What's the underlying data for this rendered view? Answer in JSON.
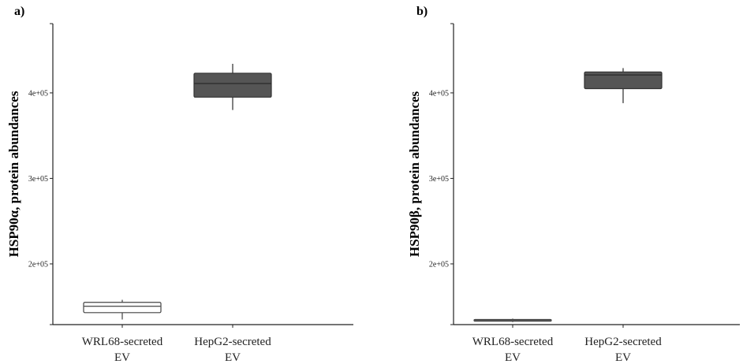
{
  "chart_data": [
    {
      "type": "box",
      "panel_label": "a)",
      "ylabel": "HSP90α, protein abundances",
      "categories": [
        [
          "WRL68-secreted",
          "EV"
        ],
        [
          "HepG2-secreted",
          "EV"
        ]
      ],
      "yticks": [
        200000,
        300000,
        400000
      ],
      "ytick_labels": [
        "2e+05",
        "3e+05",
        "4e+05"
      ],
      "ylim": [
        129000,
        481000
      ],
      "boxes": [
        {
          "category": "WRL68-secreted EV",
          "whisker_low": 135000,
          "q1": 143000,
          "median": 150500,
          "q3": 155000,
          "whisker_high": 158000,
          "fill": "#ffffff"
        },
        {
          "category": "HepG2-secreted EV",
          "whisker_low": 380000,
          "q1": 395000,
          "median": 411000,
          "q3": 423000,
          "whisker_high": 434000,
          "fill": "#555555"
        }
      ],
      "grid": false,
      "legend": "none"
    },
    {
      "type": "box",
      "panel_label": "b)",
      "ylabel": "HSP90β, protein abundances",
      "categories": [
        [
          "WRL68-secreted",
          "EV"
        ],
        [
          "HepG2-secreted",
          "EV"
        ]
      ],
      "yticks": [
        200000,
        300000,
        400000
      ],
      "ytick_labels": [
        "2e+05",
        "3e+05",
        "4e+05"
      ],
      "ylim": [
        129000,
        481000
      ],
      "boxes": [
        {
          "category": "WRL68-secreted EV",
          "whisker_low": 132000,
          "q1": 133000,
          "median": 134000,
          "q3": 135000,
          "whisker_high": 136000,
          "fill": "#ffffff"
        },
        {
          "category": "HepG2-secreted EV",
          "whisker_low": 388000,
          "q1": 405000,
          "median": 421000,
          "q3": 424500,
          "whisker_high": 429000,
          "fill": "#555555"
        }
      ],
      "grid": false,
      "legend": "none"
    }
  ]
}
